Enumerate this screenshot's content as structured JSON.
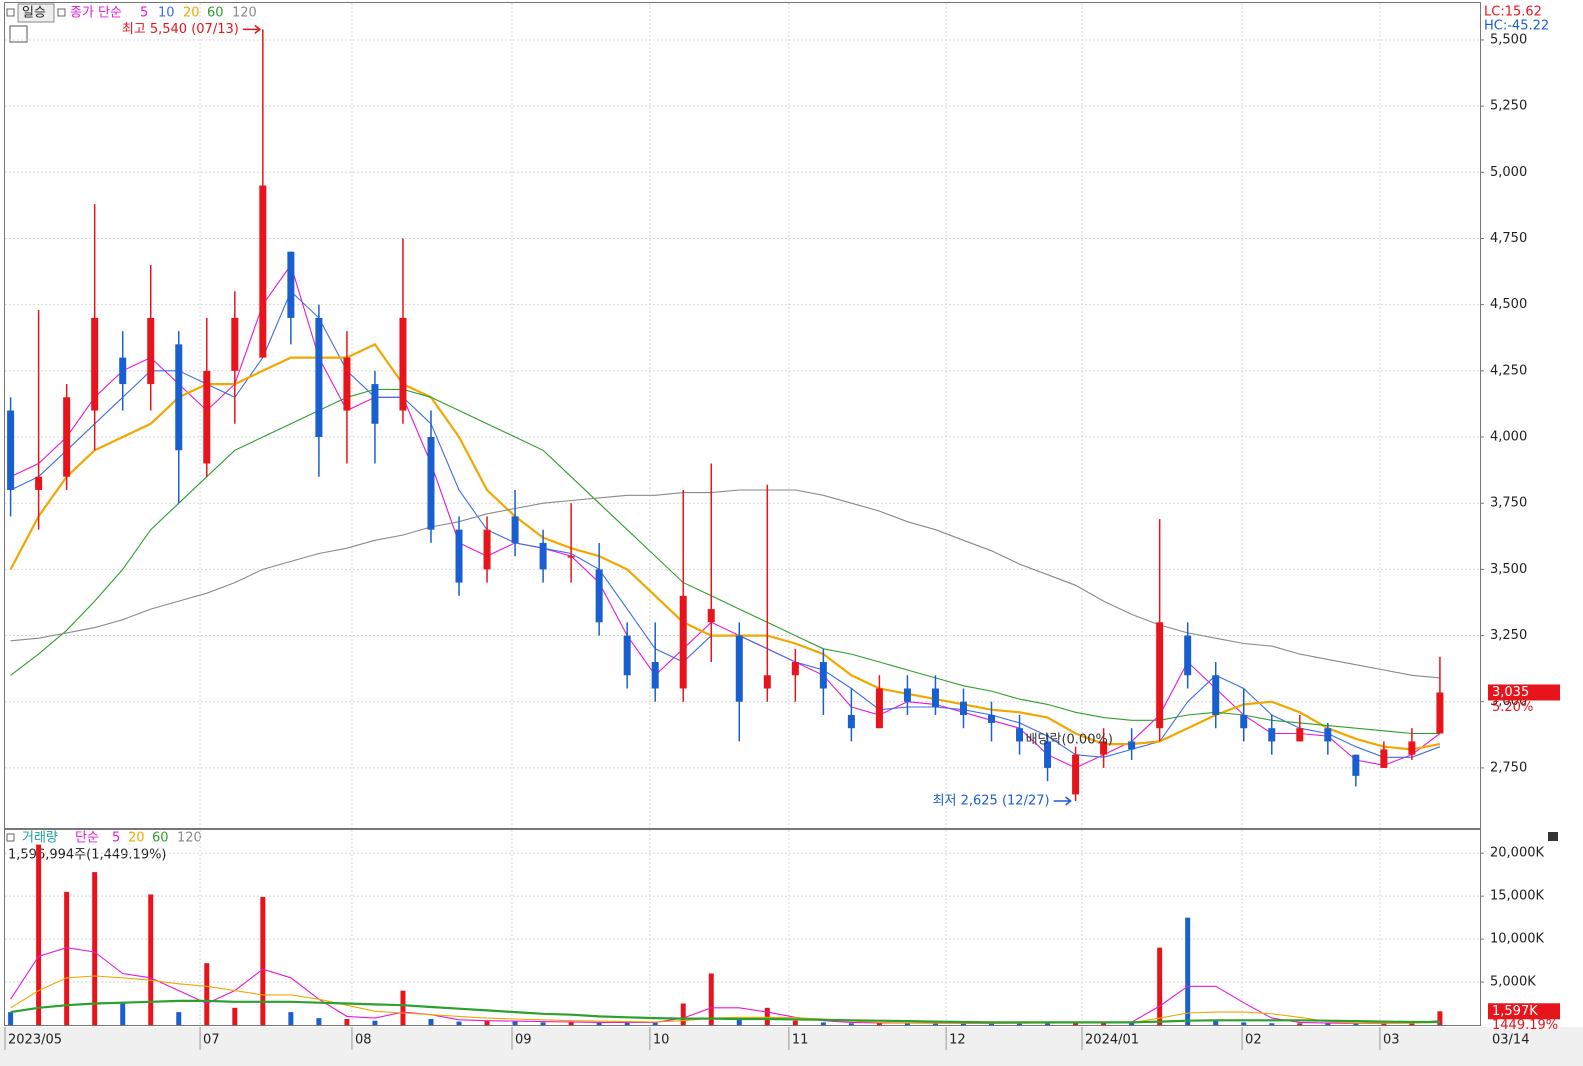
{
  "chart_data": [
    {
      "type": "candlestick",
      "period": "일승",
      "ma_label": "종가 단순",
      "lc": "LC:15.62",
      "hc": "HC:-45.22",
      "high_note": "최고 5,540 (07/13)",
      "low_note": "최저 2,625 (12/27)",
      "event_note": "배당락(0.00%)",
      "last_label": "3,035",
      "last_change": "5.20%",
      "last_date": "03/14",
      "up_color": "#e8141c",
      "down_color": "#1a5fd0",
      "open": [
        4100,
        3800,
        3850,
        4100,
        4300,
        4200,
        4350,
        3900,
        4250,
        4300,
        4700,
        4450,
        4100,
        4200,
        4100,
        4000,
        3650,
        3500,
        3700,
        3600,
        3550,
        3500,
        3250,
        3150,
        3050,
        3300,
        3250,
        3050,
        3100,
        3150,
        2950,
        2900,
        3050,
        3050,
        3000,
        2950,
        2900,
        2850,
        2650,
        2800,
        2850,
        2900,
        3250,
        3100,
        2950,
        2900,
        2850,
        2900,
        2800,
        2750,
        2800,
        2880
      ],
      "high": [
        4150,
        4480,
        4200,
        4880,
        4400,
        4650,
        4400,
        4450,
        4550,
        5540,
        4700,
        4500,
        4400,
        4250,
        4750,
        4100,
        3700,
        3700,
        3800,
        3650,
        3750,
        3600,
        3300,
        3300,
        3800,
        3900,
        3300,
        3820,
        3200,
        3200,
        3050,
        3100,
        3100,
        3100,
        3050,
        3000,
        2950,
        2880,
        2830,
        2900,
        2900,
        3690,
        3300,
        3150,
        3050,
        2950,
        2950,
        2920,
        2800,
        2850,
        2900,
        3170
      ],
      "low": [
        3700,
        3650,
        3800,
        3950,
        4100,
        4100,
        3750,
        3850,
        4050,
        4300,
        4350,
        3850,
        3900,
        3900,
        4050,
        3600,
        3400,
        3450,
        3550,
        3450,
        3450,
        3250,
        3050,
        3000,
        3000,
        3150,
        2850,
        3000,
        3000,
        2950,
        2850,
        2900,
        2950,
        2950,
        2900,
        2850,
        2800,
        2700,
        2625,
        2750,
        2780,
        2850,
        3050,
        2900,
        2850,
        2800,
        2850,
        2800,
        2680,
        2750,
        2780,
        2880
      ],
      "close": [
        3800,
        3850,
        4150,
        4450,
        4200,
        4450,
        3950,
        4250,
        4450,
        4950,
        4450,
        4000,
        4300,
        4050,
        4450,
        3650,
        3450,
        3650,
        3600,
        3500,
        3550,
        3300,
        3100,
        3050,
        3400,
        3350,
        3000,
        3100,
        3150,
        3050,
        2900,
        3050,
        3000,
        2980,
        2950,
        2920,
        2850,
        2750,
        2800,
        2850,
        2820,
        3300,
        3100,
        2950,
        2900,
        2850,
        2900,
        2850,
        2720,
        2820,
        2850,
        3035
      ],
      "series": [
        {
          "name": "5",
          "color": "#e619d6",
          "values": [
            3850,
            3900,
            4000,
            4150,
            4250,
            4300,
            4200,
            4100,
            4200,
            4500,
            4650,
            4300,
            4100,
            4150,
            4150,
            3900,
            3600,
            3550,
            3600,
            3580,
            3550,
            3450,
            3250,
            3100,
            3200,
            3300,
            3250,
            3200,
            3150,
            3100,
            2980,
            2950,
            3000,
            2990,
            2960,
            2930,
            2900,
            2800,
            2750,
            2800,
            2850,
            2950,
            3150,
            3050,
            2950,
            2880,
            2880,
            2870,
            2780,
            2760,
            2800,
            2880
          ]
        },
        {
          "name": "10",
          "color": "#3c6eea",
          "values": [
            3800,
            3850,
            3950,
            4050,
            4150,
            4250,
            4250,
            4200,
            4150,
            4300,
            4550,
            4450,
            4250,
            4150,
            4150,
            4050,
            3800,
            3650,
            3600,
            3580,
            3560,
            3500,
            3350,
            3200,
            3150,
            3250,
            3250,
            3200,
            3150,
            3120,
            3050,
            2970,
            2980,
            2980,
            2970,
            2950,
            2920,
            2870,
            2800,
            2790,
            2820,
            2850,
            3000,
            3100,
            3050,
            2950,
            2900,
            2880,
            2830,
            2790,
            2790,
            2830
          ]
        },
        {
          "name": "20",
          "color": "#f0a800",
          "values": [
            3500,
            3700,
            3850,
            3950,
            4000,
            4050,
            4150,
            4200,
            4200,
            4250,
            4300,
            4300,
            4300,
            4350,
            4200,
            4150,
            4000,
            3800,
            3700,
            3620,
            3580,
            3550,
            3500,
            3400,
            3300,
            3250,
            3250,
            3250,
            3220,
            3180,
            3100,
            3050,
            3030,
            3010,
            2990,
            2970,
            2960,
            2940,
            2880,
            2840,
            2840,
            2850,
            2900,
            2950,
            2990,
            3000,
            2960,
            2900,
            2860,
            2830,
            2820,
            2840
          ]
        },
        {
          "name": "60",
          "color": "#2ca02c",
          "values": [
            3100,
            3180,
            3270,
            3380,
            3500,
            3650,
            3750,
            3850,
            3950,
            4000,
            4050,
            4100,
            4150,
            4180,
            4180,
            4150,
            4100,
            4050,
            4000,
            3950,
            3850,
            3750,
            3650,
            3550,
            3450,
            3400,
            3350,
            3300,
            3250,
            3200,
            3180,
            3150,
            3120,
            3090,
            3060,
            3040,
            3010,
            2990,
            2960,
            2940,
            2930,
            2930,
            2950,
            2960,
            2950,
            2930,
            2920,
            2910,
            2900,
            2890,
            2880,
            2880
          ]
        },
        {
          "name": "120",
          "color": "#8a8a8a",
          "values": [
            3230,
            3240,
            3260,
            3280,
            3310,
            3350,
            3380,
            3410,
            3450,
            3500,
            3530,
            3560,
            3580,
            3610,
            3630,
            3660,
            3680,
            3710,
            3730,
            3750,
            3760,
            3770,
            3780,
            3780,
            3790,
            3790,
            3800,
            3800,
            3800,
            3780,
            3750,
            3720,
            3680,
            3650,
            3610,
            3570,
            3520,
            3480,
            3440,
            3380,
            3330,
            3290,
            3260,
            3240,
            3220,
            3210,
            3180,
            3160,
            3140,
            3120,
            3100,
            3090
          ]
        }
      ],
      "xlim": [
        -0.2,
        52.43
      ],
      "xticks": [
        {
          "value": -0.2,
          "label": "2023/05"
        },
        {
          "value": 6.76,
          "label": "07"
        },
        {
          "value": 12.18,
          "label": "08"
        },
        {
          "value": 17.89,
          "label": "09"
        },
        {
          "value": 22.81,
          "label": "10"
        },
        {
          "value": 27.77,
          "label": "11"
        },
        {
          "value": 33.38,
          "label": "12"
        },
        {
          "value": 38.23,
          "label": "2024/01"
        },
        {
          "value": 43.94,
          "label": "02"
        },
        {
          "value": 48.86,
          "label": "03"
        }
      ],
      "ylim": [
        2523,
        5632
      ],
      "yticks": [
        {
          "value": 2750,
          "label": "2,750"
        },
        {
          "value": 3000,
          "label": "3,000"
        },
        {
          "value": 3250,
          "label": "3,250"
        },
        {
          "value": 3500,
          "label": "3,500"
        },
        {
          "value": 3750,
          "label": "3,750"
        },
        {
          "value": 4000,
          "label": "4,000"
        },
        {
          "value": 4250,
          "label": "4,250"
        },
        {
          "value": 4500,
          "label": "4,500"
        },
        {
          "value": 4750,
          "label": "4,750"
        },
        {
          "value": 5000,
          "label": "5,000"
        },
        {
          "value": 5250,
          "label": "5,250"
        },
        {
          "value": 5500,
          "label": "5,500"
        }
      ],
      "grid": true
    },
    {
      "type": "bar",
      "title": "거래량",
      "ma_label": "단순",
      "info": "1,596,994주(1,449.19%)",
      "last_label": "1,597K",
      "last_change": "1449.19%",
      "values": [
        1500,
        21000,
        15500,
        17800,
        2500,
        15200,
        1500,
        7200,
        2000,
        14900,
        1500,
        800,
        700,
        500,
        4000,
        700,
        400,
        500,
        400,
        300,
        300,
        300,
        300,
        300,
        2500,
        6000,
        700,
        2000,
        500,
        300,
        200,
        250,
        200,
        200,
        200,
        200,
        200,
        300,
        400,
        300,
        300,
        9000,
        12500,
        600,
        300,
        200,
        200,
        200,
        200,
        200,
        300,
        1597
      ],
      "series": [
        {
          "name": "5",
          "color": "#e619d6",
          "values": [
            3000,
            8000,
            9000,
            8500,
            6000,
            5500,
            4000,
            2500,
            4000,
            6500,
            5500,
            3000,
            1000,
            800,
            1500,
            1200,
            600,
            500,
            450,
            400,
            350,
            300,
            300,
            300,
            800,
            2000,
            2000,
            1500,
            900,
            500,
            300,
            250,
            220,
            210,
            200,
            200,
            220,
            260,
            300,
            320,
            330,
            2200,
            4500,
            4500,
            2600,
            800,
            300,
            220,
            200,
            200,
            220,
            500
          ]
        },
        {
          "name": "20",
          "color": "#f0a800",
          "values": [
            2000,
            4000,
            5500,
            5700,
            5500,
            5200,
            4800,
            4500,
            4000,
            3500,
            3500,
            3000,
            2300,
            1600,
            1400,
            1200,
            1000,
            800,
            700,
            600,
            500,
            450,
            400,
            350,
            500,
            800,
            900,
            900,
            850,
            700,
            450,
            300,
            250,
            230,
            220,
            210,
            210,
            220,
            250,
            270,
            280,
            800,
            1400,
            1500,
            1500,
            1300,
            900,
            400,
            250,
            220,
            220,
            300
          ]
        },
        {
          "name": "60",
          "color": "#2ca02c",
          "values": [
            1500,
            2000,
            2300,
            2500,
            2600,
            2700,
            2800,
            2800,
            2700,
            2700,
            2700,
            2600,
            2500,
            2400,
            2300,
            2100,
            1900,
            1700,
            1500,
            1300,
            1200,
            1000,
            900,
            800,
            750,
            750,
            700,
            700,
            650,
            600,
            550,
            500,
            450,
            400,
            350,
            300,
            300,
            300,
            300,
            300,
            300,
            400,
            500,
            550,
            550,
            550,
            550,
            500,
            450,
            400,
            350,
            350
          ]
        },
        {
          "name": "120",
          "color": "#8a8a8a",
          "values": [
            null,
            null,
            null,
            null,
            null,
            null,
            null,
            null,
            null,
            null,
            null,
            null,
            null,
            null,
            null,
            null,
            null,
            null,
            null,
            null,
            null,
            null,
            null,
            null,
            null,
            null,
            null,
            null,
            null,
            null,
            null,
            null,
            null,
            null,
            null,
            null,
            null,
            null,
            null,
            null,
            null,
            null,
            null,
            null,
            null,
            null,
            null,
            null,
            null,
            null,
            null,
            null
          ]
        }
      ],
      "ylim": [
        0,
        22700
      ],
      "yticks": [
        {
          "value": 5000,
          "label": "5,000K"
        },
        {
          "value": 10000,
          "label": "10,000K"
        },
        {
          "value": 15000,
          "label": "15,000K"
        },
        {
          "value": 20000,
          "label": "20,000K"
        }
      ],
      "grid": true
    }
  ]
}
